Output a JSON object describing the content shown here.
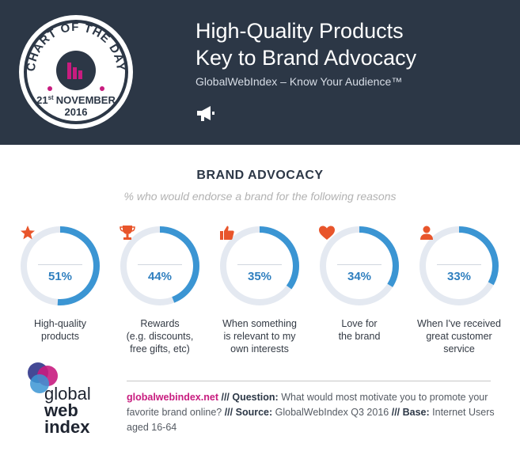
{
  "badge": {
    "top_text": "CHART OF THE DAY",
    "day": "21",
    "day_suffix": "st",
    "month": "NOVEMBER",
    "year": "2016"
  },
  "header": {
    "title_line1": "High-Quality Products",
    "title_line2": "Key to Brand Advocacy",
    "subtitle": "GlobalWebIndex – Know Your Audience™"
  },
  "chart_data": {
    "type": "pie",
    "title": "BRAND ADVOCACY",
    "subtitle": "% who would endorse a brand for the following reasons",
    "unit": "%",
    "categories": [
      "High-quality products",
      "Rewards (e.g. discounts, free gifts, etc)",
      "When something is relevant to my own interests",
      "Love for the brand",
      "When I've received great customer service"
    ],
    "values": [
      51,
      44,
      35,
      34,
      33
    ],
    "value_labels": [
      "51%",
      "44%",
      "35%",
      "34%",
      "33%"
    ],
    "label_lines": [
      [
        "High-quality",
        "products"
      ],
      [
        "Rewards",
        "(e.g. discounts,",
        "free gifts, etc)"
      ],
      [
        "When something",
        "is relevant to my",
        "own interests"
      ],
      [
        "Love for",
        "the brand"
      ],
      [
        "When I've received",
        "great customer",
        "service"
      ]
    ],
    "icons": [
      "star-icon",
      "trophy-icon",
      "thumbs-up-icon",
      "heart-icon",
      "person-icon"
    ],
    "colors": {
      "filled": "#3b95d3",
      "track": "#e4e9f1",
      "icon": "#e8552b"
    }
  },
  "logo": {
    "line1": "global",
    "line2": "web",
    "line3": "index"
  },
  "footer": {
    "url": "globalwebindex.net",
    "sep1": " /// ",
    "question_label": "Question:",
    "question_text": " What would most motivate you to promote your favorite brand online?",
    "sep2": " /// ",
    "source_label": "Source:",
    "source_text": " GlobalWebIndex Q3 2016",
    "sep3": " /// ",
    "base_label": "Base:",
    "base_text": " Internet Users aged 16-64"
  },
  "colors": {
    "header_bg": "#2c3746",
    "accent_magenta": "#c81c7f",
    "accent_blue": "#3b95d3"
  }
}
